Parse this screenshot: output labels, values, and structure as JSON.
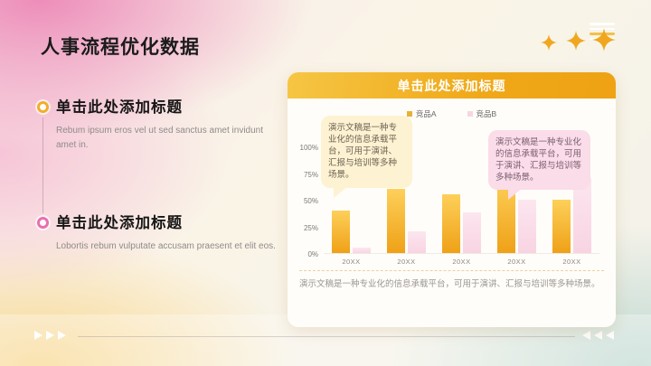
{
  "slide": {
    "title": "人事流程优化数据"
  },
  "left_panel": {
    "items": [
      {
        "title": "单击此处添加标题",
        "body": "Rebum ipsum eros vel ut sed sanctus amet invidunt amet in."
      },
      {
        "title": "单击此处添加标题",
        "body": "Lobortis rebum vulputate accusam praesent et elit eos."
      }
    ]
  },
  "card": {
    "header": "单击此处添加标题",
    "bubbles": [
      {
        "text": "演示文稿是一种专业化的信息承载平台，可用于演讲、汇报与培训等多种场景。"
      },
      {
        "text": "演示文稿是一种专业化的信息承载平台，可用于演讲、汇报与培训等多种场景。"
      }
    ],
    "caption": "演示文稿是一种专业化的信息承载平台，可用于演讲、汇报与培训等多种场景。"
  },
  "chart_data": {
    "type": "bar",
    "title": "单击此处添加标题",
    "categories": [
      "20XX",
      "20XX",
      "20XX",
      "20XX",
      "20XX"
    ],
    "series": [
      {
        "name": "竞品A",
        "values": [
          40,
          60,
          55,
          70,
          50
        ],
        "color": "#e9b138",
        "gradient": [
          "#fdd05a",
          "#efa117"
        ]
      },
      {
        "name": "竞品B",
        "values": [
          5,
          20,
          38,
          50,
          70
        ],
        "color": "#f7d6e2",
        "gradient": [
          "#fce6ef",
          "#f8d4e2"
        ]
      }
    ],
    "yticks": [
      "0%",
      "25%",
      "50%",
      "75%",
      "100%"
    ],
    "ylim": [
      0,
      100
    ],
    "grid": false,
    "legend_position": "top-center",
    "xlabel": "",
    "ylabel": ""
  },
  "footer": {
    "prev_icon": "left-triangles",
    "next_icon": "right-triangles"
  },
  "colors": {
    "accent_gold": "#efa818",
    "accent_pink": "#e96fae",
    "header_gradient": [
      "#f6c644",
      "#eea214"
    ],
    "bubble_yellow": "#fdf2d2",
    "bubble_pink": "#fbdce9",
    "bg_pink": "#ee93bd",
    "bg_yellow": "#f8d68a",
    "bg_teal": "#c9dcd8"
  }
}
